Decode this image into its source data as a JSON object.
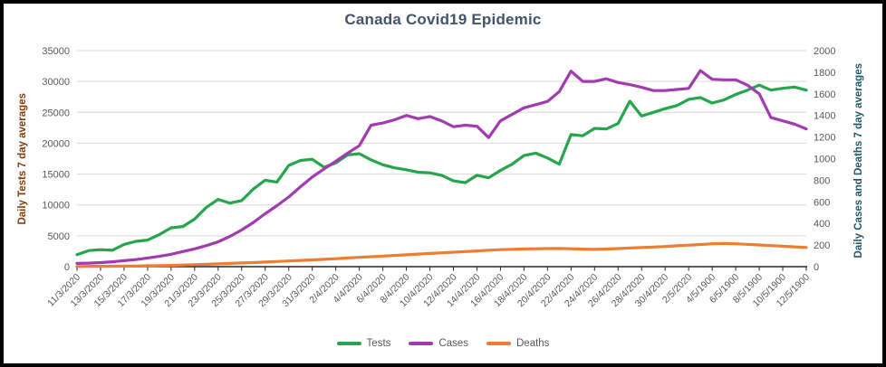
{
  "title": "Canada Covid19 Epidemic",
  "axes": {
    "left": {
      "title": "Daily Tests 7 day averages"
    },
    "right": {
      "title": "Daily Cases and Deaths 7 day averages"
    }
  },
  "legend": [
    {
      "label": "Tests",
      "color": "#26A64C"
    },
    {
      "label": "Cases",
      "color": "#A23BB0"
    },
    {
      "label": "Deaths",
      "color": "#ED7D31"
    }
  ],
  "colors": {
    "title_text": "#44546A",
    "left_axis_title": "#833C0C",
    "right_axis_title": "#215968",
    "tick_label": "#595959",
    "gridline": "#D9D9D9",
    "axis_line": "#262626",
    "border": "#000000"
  },
  "chart_data": {
    "type": "line",
    "title": "Canada Covid19 Epidemic",
    "grid": true,
    "legend_position": "bottom",
    "points_per_label": 2,
    "x_labels": [
      "11/3/2020",
      "13/3/2020",
      "15/3/2020",
      "17/3/2020",
      "19/3/2020",
      "21/3/2020",
      "23/3/2020",
      "25/3/2020",
      "27/3/2020",
      "29/3/2020",
      "31/3/2020",
      "2/4/2020",
      "4/4/2020",
      "6/4/2020",
      "8/4/2020",
      "10/4/2020",
      "12/4/2020",
      "14/4/2020",
      "16/4/2020",
      "18/4/2020",
      "20/4/2020",
      "22/4/2020",
      "24/4/2020",
      "26/4/2020",
      "28/4/2020",
      "30/4/2020",
      "2/5/2020",
      "4/5/1900",
      "6/5/1900",
      "8/5/1900",
      "10/5/1900",
      "12/5/1900"
    ],
    "left_axis": {
      "label": "Daily Tests 7 day averages",
      "min": 0,
      "max": 35000,
      "tick_step": 5000
    },
    "right_axis": {
      "label": "Daily Cases and Deaths 7 day averages",
      "min": 0,
      "max": 2000,
      "tick_step": 200
    },
    "series": [
      {
        "name": "Tests",
        "axis": "left",
        "color": "#26A64C",
        "values": [
          1950,
          2600,
          2750,
          2650,
          3600,
          4100,
          4300,
          5200,
          6300,
          6500,
          7700,
          9600,
          10900,
          10300,
          10700,
          12600,
          14000,
          13700,
          16400,
          17200,
          17400,
          16100,
          16800,
          18100,
          18300,
          17300,
          16500,
          16000,
          15700,
          15300,
          15200,
          14800,
          13900,
          13600,
          14800,
          14400,
          15600,
          16600,
          18000,
          18400,
          17600,
          16600,
          21400,
          21200,
          22400,
          22300,
          23200,
          26800,
          24400,
          25000,
          25600,
          26100,
          27100,
          27400,
          26500,
          27000,
          27900,
          28600,
          29400,
          28600,
          28900,
          29100,
          28600
        ]
      },
      {
        "name": "Cases",
        "axis": "right",
        "color": "#A23BB0",
        "values": [
          30,
          33,
          38,
          45,
          55,
          65,
          80,
          95,
          115,
          140,
          165,
          195,
          230,
          280,
          340,
          410,
          490,
          565,
          645,
          740,
          830,
          905,
          975,
          1050,
          1120,
          1310,
          1330,
          1360,
          1400,
          1370,
          1390,
          1350,
          1295,
          1310,
          1300,
          1195,
          1350,
          1410,
          1470,
          1500,
          1530,
          1620,
          1810,
          1715,
          1715,
          1740,
          1705,
          1685,
          1660,
          1630,
          1630,
          1640,
          1650,
          1815,
          1735,
          1730,
          1730,
          1680,
          1600,
          1380,
          1350,
          1320,
          1275
        ]
      },
      {
        "name": "Deaths",
        "axis": "right",
        "color": "#ED7D31",
        "values": [
          2,
          3,
          3,
          4,
          5,
          6,
          8,
          10,
          12,
          15,
          18,
          22,
          26,
          30,
          34,
          38,
          43,
          48,
          53,
          58,
          63,
          68,
          74,
          80,
          86,
          92,
          98,
          104,
          110,
          116,
          122,
          128,
          134,
          140,
          146,
          152,
          157,
          161,
          164,
          166,
          167,
          168,
          166,
          162,
          160,
          163,
          167,
          172,
          177,
          182,
          187,
          193,
          199,
          205,
          212,
          215,
          212,
          207,
          201,
          195,
          189,
          183,
          177
        ]
      }
    ]
  }
}
